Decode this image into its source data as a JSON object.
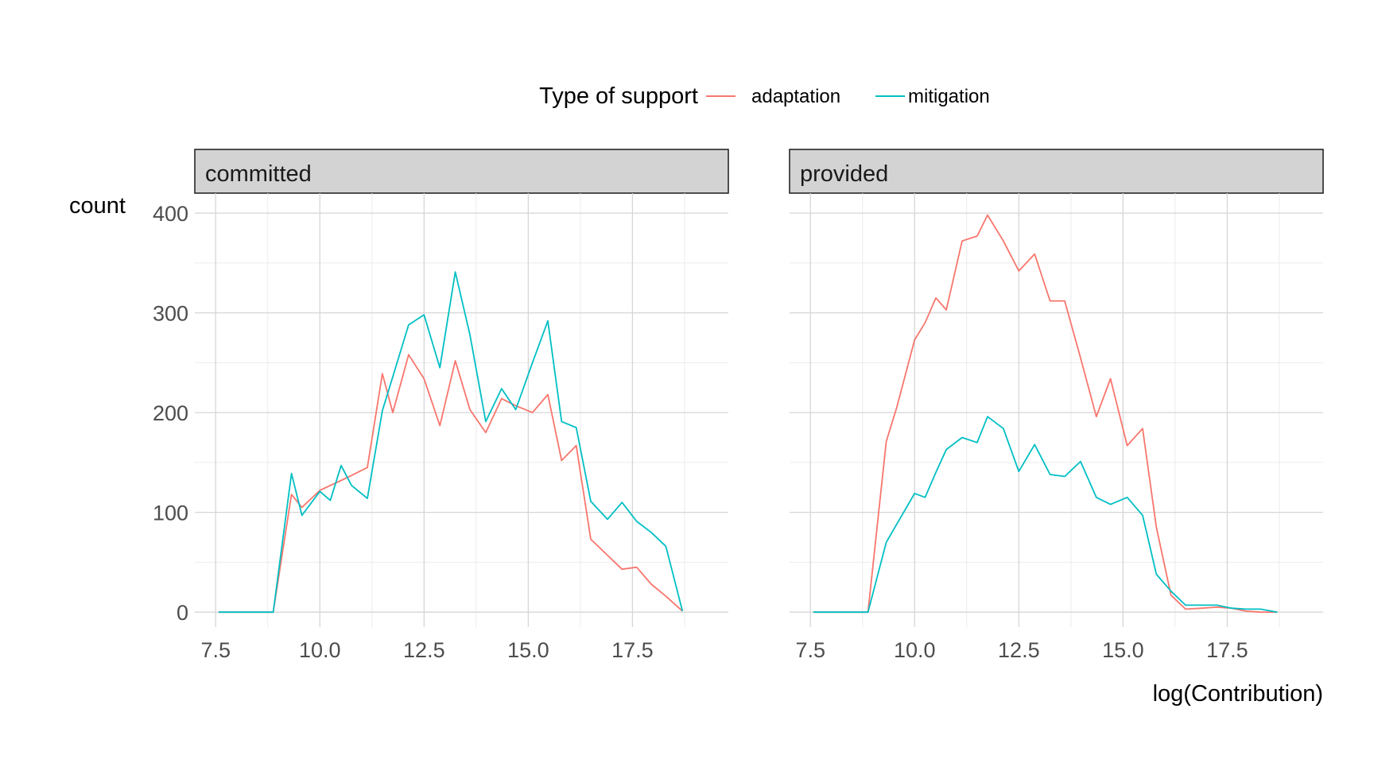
{
  "chart_data": {
    "type": "line",
    "title": "",
    "xlabel": "log(Contribution)",
    "ylabel": "count",
    "xlim": [
      7.0,
      19.8
    ],
    "ylim": [
      -15,
      420
    ],
    "xticks": [
      7.5,
      10.0,
      12.5,
      15.0,
      17.5
    ],
    "xtick_labels": [
      "7.5",
      "10.0",
      "12.5",
      "15.0",
      "17.5"
    ],
    "yticks": [
      0,
      100,
      200,
      300,
      400
    ],
    "ytick_labels": [
      "0",
      "100",
      "200",
      "300",
      "400"
    ],
    "grid": true,
    "legend": {
      "title": "Type of support",
      "position": "top",
      "entries": [
        "adaptation",
        "mitigation"
      ]
    },
    "colors": {
      "adaptation": "#F8766D",
      "mitigation": "#00BFC4"
    },
    "x": [
      7.57,
      8.01,
      8.44,
      8.88,
      9.32,
      9.57,
      10.0,
      10.25,
      10.51,
      10.76,
      11.14,
      11.5,
      11.75,
      12.13,
      12.5,
      12.88,
      13.25,
      13.6,
      13.98,
      14.36,
      14.7,
      15.1,
      15.47,
      15.8,
      16.15,
      16.5,
      16.9,
      17.25,
      17.6,
      17.95,
      18.3,
      18.7
    ],
    "panels": [
      {
        "name": "committed",
        "series": [
          {
            "name": "adaptation",
            "values": [
              0,
              0,
              0,
              0,
              118,
              105,
              122,
              127,
              132,
              137,
              145,
              239,
              200,
              258,
              234,
              187,
              252,
              203,
              180,
              214,
              207,
              200,
              218,
              152,
              167,
              73,
              57,
              43,
              45,
              28,
              16,
              1
            ]
          },
          {
            "name": "mitigation",
            "values": [
              0,
              0,
              0,
              0,
              139,
              97,
              121,
              112,
              147,
              127,
              114,
              202,
              236,
              288,
              298,
              245,
              341,
              278,
              191,
              224,
              203,
              250,
              292,
              191,
              185,
              111,
              93,
              110,
              91,
              80,
              66,
              1
            ]
          }
        ]
      },
      {
        "name": "provided",
        "series": [
          {
            "name": "adaptation",
            "values": [
              0,
              0,
              0,
              0,
              171,
              205,
              273,
              290,
              315,
              303,
              372,
              377,
              398,
              372,
              342,
              359,
              312,
              312,
              255,
              196,
              234,
              167,
              184,
              85,
              17,
              3,
              4,
              5,
              4,
              1,
              0,
              0
            ]
          },
          {
            "name": "mitigation",
            "values": [
              0,
              0,
              0,
              0,
              70,
              88,
              119,
              115,
              140,
              163,
              175,
              170,
              196,
              184,
              141,
              168,
              138,
              136,
              151,
              115,
              108,
              115,
              97,
              38,
              21,
              7,
              7,
              7,
              4,
              3,
              3,
              0
            ]
          }
        ]
      }
    ]
  }
}
